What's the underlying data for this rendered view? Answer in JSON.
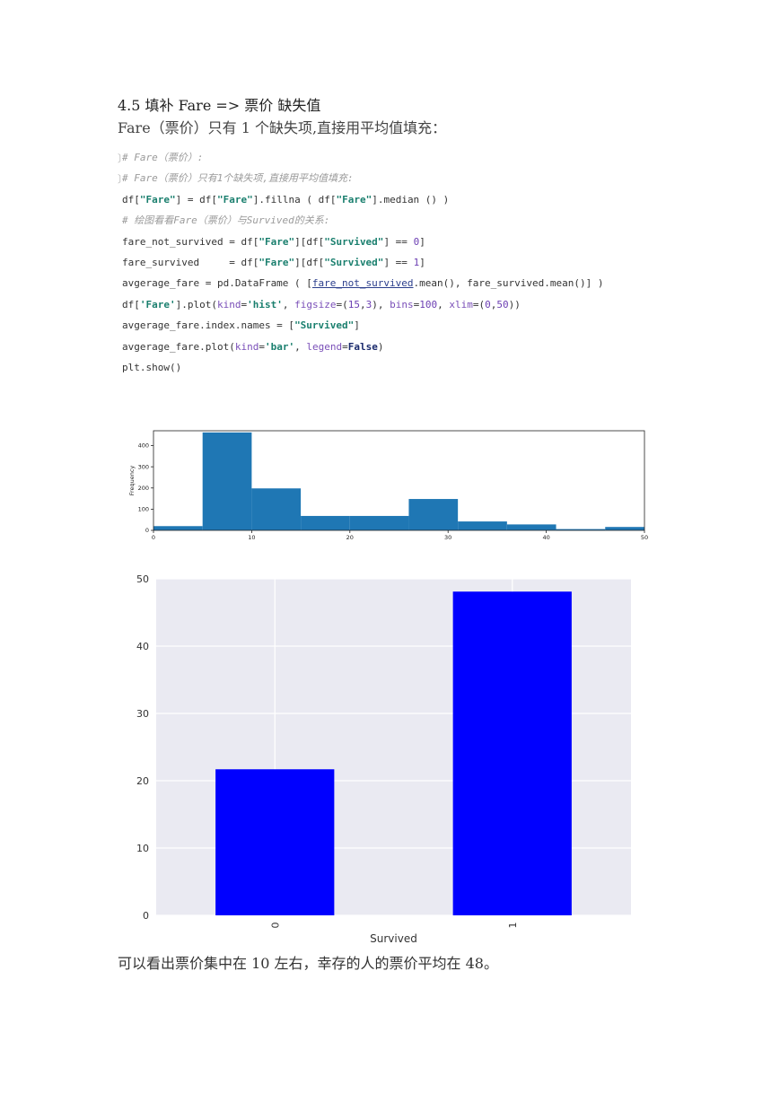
{
  "heading": "4.5 填补 Fare => 票价 缺失值",
  "intro": "Fare（票价）只有 1 个缺失项,直接用平均值填充：",
  "code": {
    "comment1": "# Fare（票价）:",
    "comment2": "# Fare（票价）只有1个缺失项,直接用平均值填充:",
    "comment3": "# 绘图看看Fare（票价）与Survived的关系:"
  },
  "conclusion": "可以看出票价集中在 10 左右，幸存的人的票价平均在 48。",
  "chart_data": [
    {
      "type": "bar",
      "subtype": "histogram",
      "bins": [
        [
          0,
          5
        ],
        [
          5,
          10
        ],
        [
          10,
          15
        ],
        [
          15,
          20
        ],
        [
          20,
          26
        ],
        [
          26,
          31
        ],
        [
          31,
          36
        ],
        [
          36,
          41
        ],
        [
          41,
          46
        ],
        [
          46,
          50
        ]
      ],
      "values": [
        20,
        462,
        198,
        68,
        68,
        148,
        42,
        28,
        6,
        16
      ],
      "ylabel": "Frequency",
      "xlim": [
        0,
        50
      ],
      "ylim": [
        0,
        470
      ],
      "xticks": [
        0,
        10,
        20,
        30,
        40,
        50
      ],
      "yticks": [
        0,
        100,
        200,
        300,
        400
      ],
      "color": "#1f77b4"
    },
    {
      "type": "bar",
      "categories": [
        "0",
        "1"
      ],
      "values": [
        21.7,
        48.1
      ],
      "xlabel": "Survived",
      "ylim": [
        0,
        50
      ],
      "yticks": [
        0,
        10,
        20,
        30,
        40,
        50
      ],
      "color": "#0000ff",
      "background": "#eaeaf2",
      "grid": true
    }
  ]
}
